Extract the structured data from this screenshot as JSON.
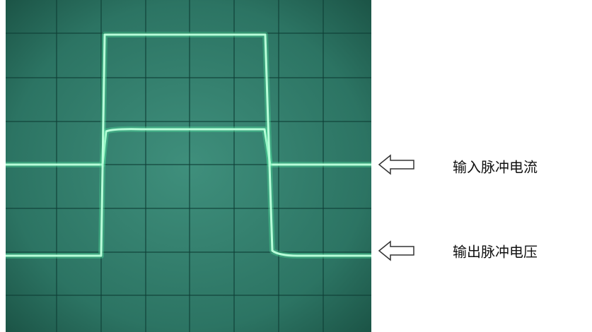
{
  "labels": {
    "input": "输入脉冲电流",
    "output": "输出脉冲电压"
  }
}
